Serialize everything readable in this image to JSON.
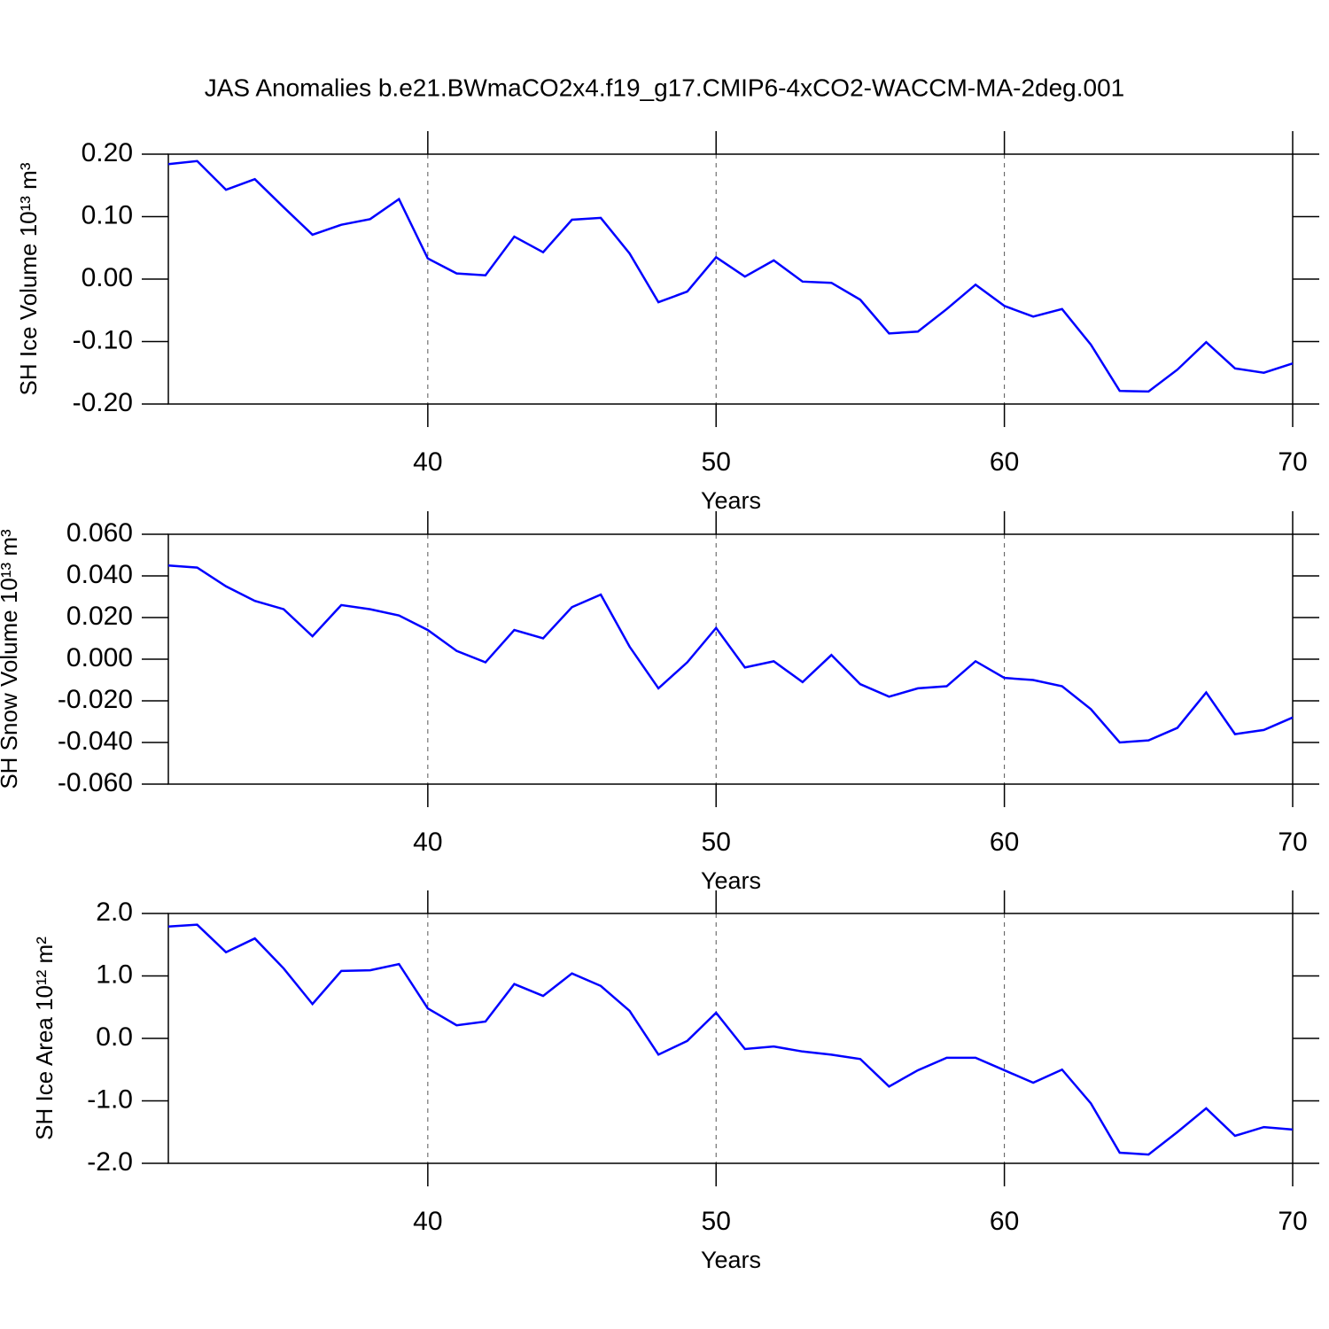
{
  "chart_data": [
    {
      "type": "line",
      "title": "JAS Anomalies b.e21.BWmaCO2x4.f19_g17.CMIP6-4xCO2-WACCM-MA-2deg.001",
      "xlabel": "Years",
      "ylabel": "SH Ice Volume 10¹³ m³",
      "color": "#0000ff",
      "grid": true,
      "x": [
        31,
        32,
        33,
        34,
        35,
        36,
        37,
        38,
        39,
        40,
        41,
        42,
        43,
        44,
        45,
        46,
        47,
        48,
        49,
        50,
        51,
        52,
        53,
        54,
        55,
        56,
        57,
        58,
        59,
        60,
        61,
        62,
        63,
        64,
        65,
        66,
        67,
        68,
        69,
        70
      ],
      "values": [
        0.184,
        0.189,
        0.143,
        0.16,
        0.115,
        0.071,
        0.087,
        0.096,
        0.128,
        0.033,
        0.009,
        0.006,
        0.068,
        0.043,
        0.095,
        0.098,
        0.041,
        -0.037,
        -0.02,
        0.035,
        0.004,
        0.03,
        -0.004,
        -0.006,
        -0.033,
        -0.087,
        -0.084,
        -0.048,
        -0.009,
        -0.043,
        -0.06,
        -0.048,
        -0.105,
        -0.179,
        -0.18,
        -0.145,
        -0.101,
        -0.143,
        -0.15,
        -0.135
      ],
      "xlim": [
        31,
        70
      ],
      "xticks": [
        40,
        50,
        60,
        70
      ],
      "ylim": [
        -0.2,
        0.2
      ],
      "yticks": [
        {
          "value": -0.2,
          "label": "-0.20"
        },
        {
          "value": -0.1,
          "label": "-0.10"
        },
        {
          "value": 0,
          "label": "0.00"
        },
        {
          "value": 0.1,
          "label": "0.10"
        },
        {
          "value": 0.2,
          "label": "0.20"
        }
      ]
    },
    {
      "type": "line",
      "xlabel": "Years",
      "ylabel": "SH Snow Volume 10¹³ m³",
      "color": "#0000ff",
      "grid": true,
      "x": [
        31,
        32,
        33,
        34,
        35,
        36,
        37,
        38,
        39,
        40,
        41,
        42,
        43,
        44,
        45,
        46,
        47,
        48,
        49,
        50,
        51,
        52,
        53,
        54,
        55,
        56,
        57,
        58,
        59,
        60,
        61,
        62,
        63,
        64,
        65,
        66,
        67,
        68,
        69,
        70
      ],
      "values": [
        0.045,
        0.044,
        0.035,
        0.028,
        0.024,
        0.011,
        0.026,
        0.024,
        0.021,
        0.014,
        0.004,
        -0.0015,
        0.014,
        0.01,
        0.025,
        0.031,
        0.006,
        -0.014,
        -0.0015,
        0.015,
        -0.004,
        -0.001,
        -0.011,
        0.002,
        -0.012,
        -0.018,
        -0.014,
        -0.013,
        -0.001,
        -0.009,
        -0.01,
        -0.013,
        -0.024,
        -0.04,
        -0.039,
        -0.033,
        -0.016,
        -0.036,
        -0.034,
        -0.028
      ],
      "xlim": [
        31,
        70
      ],
      "xticks": [
        40,
        50,
        60,
        70
      ],
      "ylim": [
        -0.06,
        0.06
      ],
      "yticks": [
        {
          "value": -0.06,
          "label": "-0.060"
        },
        {
          "value": -0.04,
          "label": "-0.040"
        },
        {
          "value": -0.02,
          "label": "-0.020"
        },
        {
          "value": 0,
          "label": "0.000"
        },
        {
          "value": 0.02,
          "label": "0.020"
        },
        {
          "value": 0.04,
          "label": "0.040"
        },
        {
          "value": 0.06,
          "label": "0.060"
        }
      ]
    },
    {
      "type": "line",
      "xlabel": "Years",
      "ylabel": "SH Ice Area 10¹² m²",
      "color": "#0000ff",
      "grid": true,
      "x": [
        31,
        32,
        33,
        34,
        35,
        36,
        37,
        38,
        39,
        40,
        41,
        42,
        43,
        44,
        45,
        46,
        47,
        48,
        49,
        50,
        51,
        52,
        53,
        54,
        55,
        56,
        57,
        58,
        59,
        60,
        61,
        62,
        63,
        64,
        65,
        66,
        67,
        68,
        69,
        70
      ],
      "values": [
        1.79,
        1.82,
        1.38,
        1.6,
        1.12,
        0.55,
        1.08,
        1.09,
        1.19,
        0.48,
        0.21,
        0.27,
        0.87,
        0.68,
        1.04,
        0.84,
        0.44,
        -0.26,
        -0.04,
        0.41,
        -0.17,
        -0.13,
        -0.21,
        -0.26,
        -0.33,
        -0.77,
        -0.51,
        -0.31,
        -0.31,
        -0.51,
        -0.71,
        -0.5,
        -1.04,
        -1.83,
        -1.86,
        -1.5,
        -1.12,
        -1.56,
        -1.42,
        -1.46
      ],
      "xlim": [
        31,
        70
      ],
      "xticks": [
        40,
        50,
        60,
        70
      ],
      "ylim": [
        -2,
        2
      ],
      "yticks": [
        {
          "value": -2,
          "label": "-2.0"
        },
        {
          "value": -1,
          "label": "-1.0"
        },
        {
          "value": 0,
          "label": "0.0"
        },
        {
          "value": 1,
          "label": "1.0"
        },
        {
          "value": 2,
          "label": "2.0"
        }
      ]
    }
  ]
}
